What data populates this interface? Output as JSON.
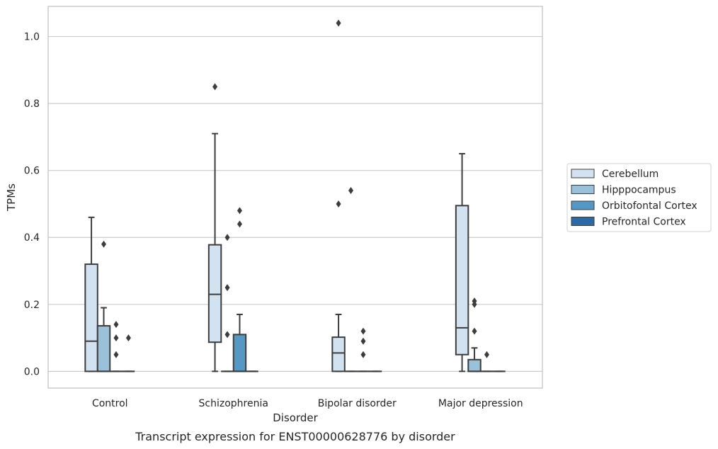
{
  "chart_data": {
    "type": "box",
    "title": "",
    "caption": "Transcript expression for ENST00000628776 by disorder",
    "xlabel": "Disorder",
    "ylabel": "TPMs",
    "ylim": [
      -0.05,
      1.09
    ],
    "yticks": [
      0.0,
      0.2,
      0.4,
      0.6,
      0.8,
      1.0
    ],
    "ytick_labels": [
      "0.0",
      "0.2",
      "0.4",
      "0.6",
      "0.8",
      "1.0"
    ],
    "grid": "horizontal",
    "legend_position": "right",
    "categories": [
      "Control",
      "Schizophrenia",
      "Bipolar disorder",
      "Major depression"
    ],
    "series": [
      {
        "name": "Cerebellum",
        "color": "#d3e2f1",
        "boxes": [
          {
            "q1": 0.0,
            "median": 0.09,
            "q3": 0.32,
            "whislo": 0.0,
            "whishi": 0.46,
            "fliers": []
          },
          {
            "q1": 0.087,
            "median": 0.23,
            "q3": 0.378,
            "whislo": 0.0,
            "whishi": 0.71,
            "fliers": [
              0.85
            ]
          },
          {
            "q1": 0.0,
            "median": 0.055,
            "q3": 0.102,
            "whislo": 0.0,
            "whishi": 0.17,
            "fliers": [
              0.5,
              1.04
            ]
          },
          {
            "q1": 0.05,
            "median": 0.13,
            "q3": 0.495,
            "whislo": 0.0,
            "whishi": 0.65,
            "fliers": []
          }
        ]
      },
      {
        "name": "Hipppocampus",
        "color": "#9ac0da",
        "boxes": [
          {
            "q1": 0.0,
            "median": 0.0,
            "q3": 0.136,
            "whislo": 0.0,
            "whishi": 0.19,
            "fliers": [
              0.38
            ]
          },
          {
            "q1": 0.0,
            "median": 0.0,
            "q3": 0.0,
            "whislo": 0.0,
            "whishi": 0.0,
            "fliers": [
              0.11,
              0.25,
              0.4
            ]
          },
          {
            "q1": 0.0,
            "median": 0.0,
            "q3": 0.0,
            "whislo": 0.0,
            "whishi": 0.0,
            "fliers": [
              0.54
            ]
          },
          {
            "q1": 0.0,
            "median": 0.0,
            "q3": 0.035,
            "whislo": 0.0,
            "whishi": 0.07,
            "fliers": [
              0.12,
              0.2,
              0.21
            ]
          }
        ]
      },
      {
        "name": "Orbitofontal Cortex",
        "color": "#5597c5",
        "boxes": [
          {
            "q1": 0.0,
            "median": 0.0,
            "q3": 0.0,
            "whislo": 0.0,
            "whishi": 0.0,
            "fliers": [
              0.05,
              0.1,
              0.14
            ]
          },
          {
            "q1": 0.0,
            "median": 0.0,
            "q3": 0.11,
            "whislo": 0.0,
            "whishi": 0.17,
            "fliers": [
              0.44,
              0.48
            ]
          },
          {
            "q1": 0.0,
            "median": 0.0,
            "q3": 0.0,
            "whislo": 0.0,
            "whishi": 0.0,
            "fliers": [
              0.05,
              0.09,
              0.12
            ]
          },
          {
            "q1": 0.0,
            "median": 0.0,
            "q3": 0.0,
            "whislo": 0.0,
            "whishi": 0.0,
            "fliers": [
              0.05
            ]
          }
        ]
      },
      {
        "name": "Prefrontal Cortex",
        "color": "#2a6aa8",
        "boxes": [
          {
            "q1": 0.0,
            "median": 0.0,
            "q3": 0.0,
            "whislo": 0.0,
            "whishi": 0.0,
            "fliers": [
              0.1
            ]
          },
          {
            "q1": 0.0,
            "median": 0.0,
            "q3": 0.0,
            "whislo": 0.0,
            "whishi": 0.0,
            "fliers": []
          },
          {
            "q1": 0.0,
            "median": 0.0,
            "q3": 0.0,
            "whislo": 0.0,
            "whishi": 0.0,
            "fliers": []
          },
          {
            "q1": 0.0,
            "median": 0.0,
            "q3": 0.0,
            "whislo": 0.0,
            "whishi": 0.0,
            "fliers": []
          }
        ]
      }
    ]
  }
}
